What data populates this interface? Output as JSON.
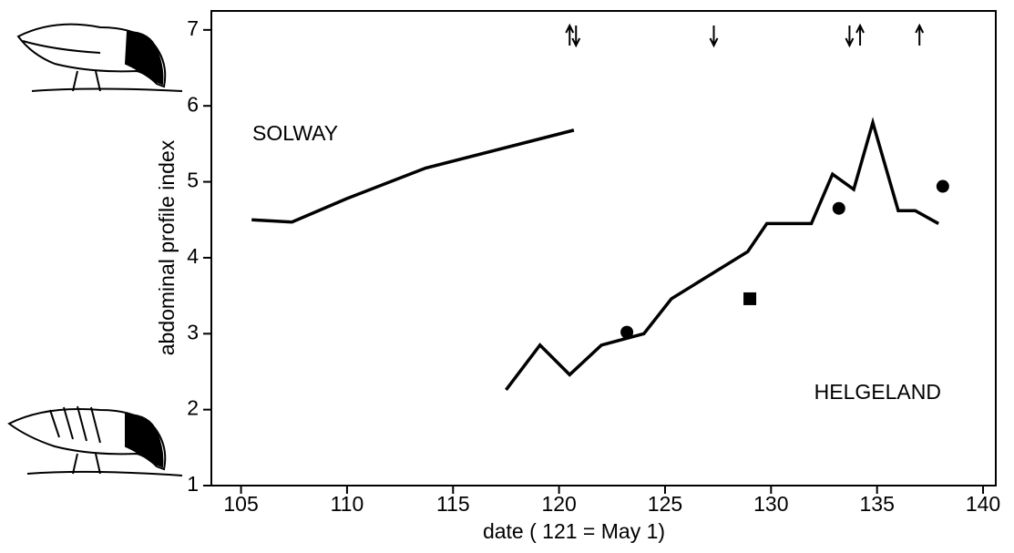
{
  "chart_data": {
    "type": "line",
    "xlabel": "date ( 121 = May 1)",
    "ylabel": "abdominal profile index",
    "xlim": [
      103.6,
      140.6
    ],
    "ylim": [
      1,
      7.25
    ],
    "xticks": [
      105,
      110,
      115,
      120,
      125,
      130,
      135,
      140
    ],
    "yticks": [
      1,
      2,
      3,
      4,
      5,
      6,
      7
    ],
    "series": [
      {
        "name": "SOLWAY",
        "color": "#000000",
        "x": [
          105.5,
          107.4,
          110,
          113.7,
          120.7
        ],
        "values": [
          4.5,
          4.47,
          4.78,
          5.18,
          5.68
        ]
      },
      {
        "name": "HELGELAND",
        "color": "#000000",
        "x": [
          117.5,
          119.1,
          120.5,
          122.0,
          124.0,
          125.3,
          128.9,
          129.8,
          131.9,
          132.9,
          133.9,
          134.8,
          136.0,
          136.8,
          137.9
        ],
        "values": [
          2.26,
          2.85,
          2.46,
          2.85,
          3.0,
          3.46,
          4.08,
          4.45,
          4.45,
          5.1,
          4.9,
          5.78,
          4.62,
          4.62,
          4.45
        ]
      }
    ],
    "circles": {
      "x": [
        123.2,
        133.2,
        138.1
      ],
      "values": [
        3.02,
        4.65,
        4.94
      ]
    },
    "squares": {
      "x": [
        129.0
      ],
      "values": [
        3.46
      ]
    },
    "arrows_up": [
      120.5,
      134.2,
      137.0
    ],
    "arrows_down": [
      120.8,
      127.3,
      133.7
    ]
  }
}
